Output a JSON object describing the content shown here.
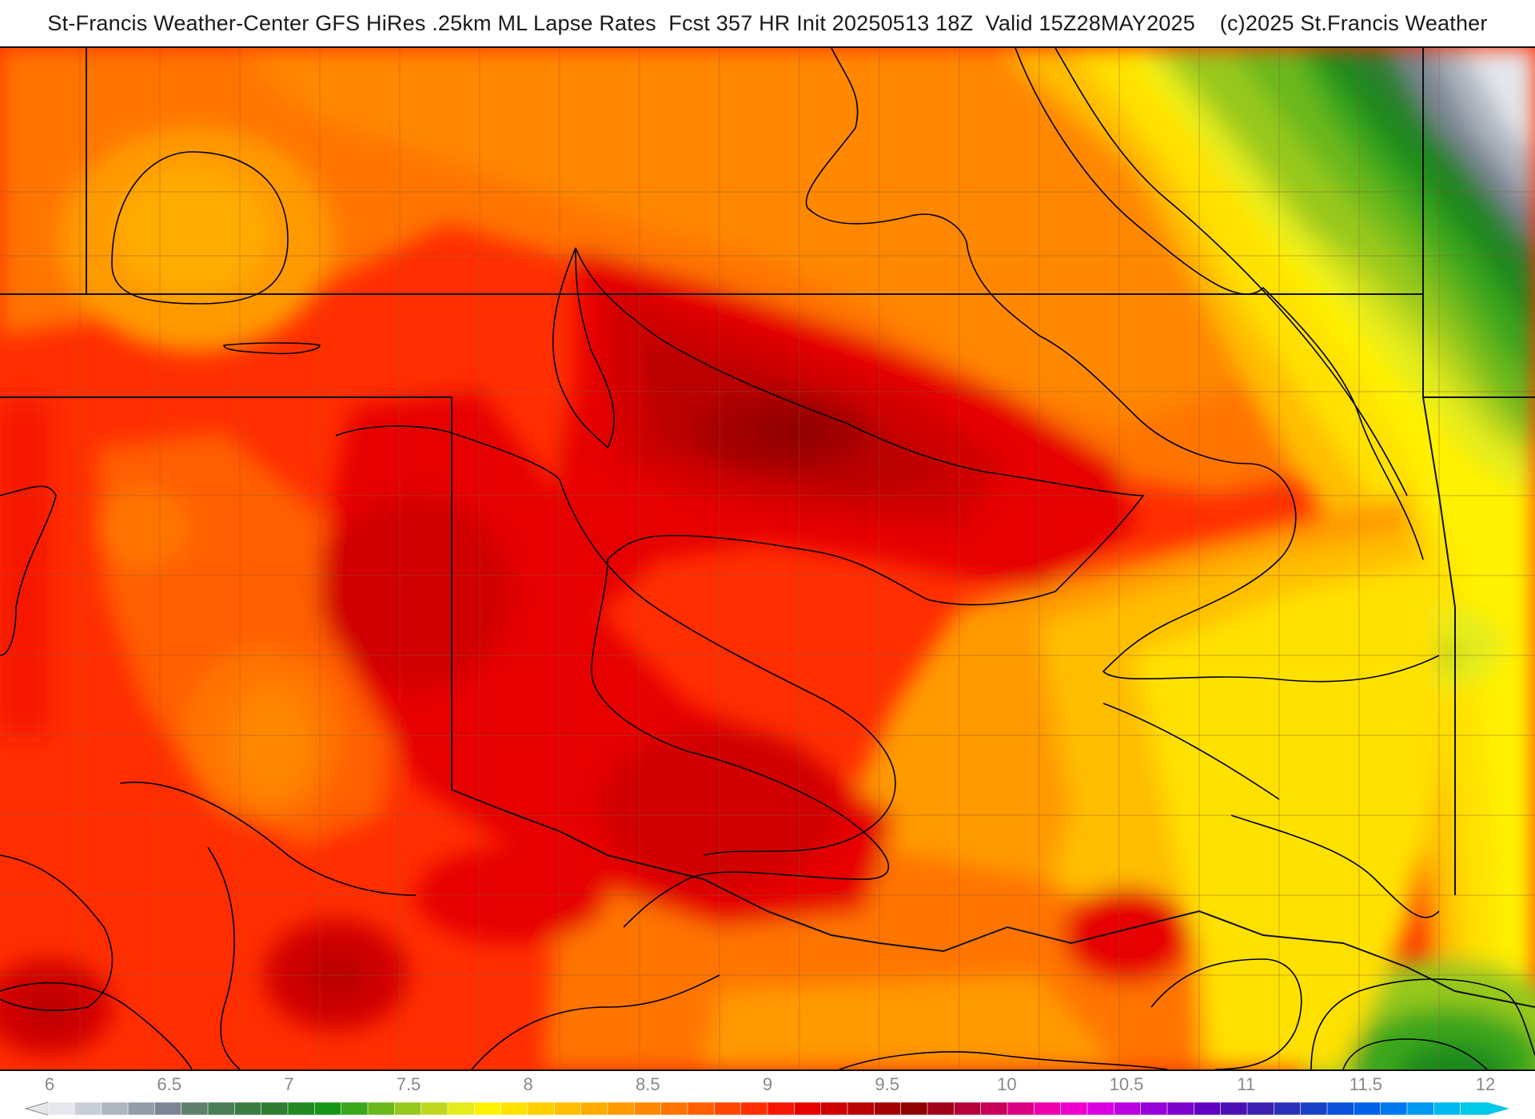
{
  "title": "St-Francis Weather-Center GFS HiRes .25km ML Lapse Rates  Fcst 357 HR Init 20250513 18Z  Valid 15Z28MAY2025    (c)2025 St.Francis Weather",
  "legend": {
    "ticks": [
      "6",
      "6.5",
      "7",
      "7.5",
      "8",
      "8.5",
      "9",
      "9.5",
      "10",
      "10.5",
      "11",
      "11.5",
      "12"
    ],
    "colors": [
      "#e4e7ec",
      "#c9ced6",
      "#aeb5bf",
      "#949ca8",
      "#7b8593",
      "#5f7f6d",
      "#4a7d57",
      "#3a7c43",
      "#2e7d32",
      "#1f8a1f",
      "#169616",
      "#3aa61a",
      "#6ab81c",
      "#96c81e",
      "#bfd81f",
      "#e4ec1c",
      "#fff200",
      "#ffe100",
      "#ffd000",
      "#ffbe00",
      "#ffac00",
      "#ff9a00",
      "#ff8800",
      "#ff7400",
      "#ff5e00",
      "#ff4600",
      "#ff2e00",
      "#f51500",
      "#e60000",
      "#d00000",
      "#ba0000",
      "#a40000",
      "#900000",
      "#a0001a",
      "#b40038",
      "#c8005a",
      "#dc0082",
      "#ee00aa",
      "#f000d0",
      "#d800e0",
      "#b800e0",
      "#9800d8",
      "#7c00cc",
      "#6000c0",
      "#4a10b4",
      "#3a20b0",
      "#2a30b8",
      "#1a40c8",
      "#0a50d8",
      "#0060e8",
      "#0078f0",
      "#0098f0",
      "#00b8f0",
      "#00c8e8"
    ],
    "min_value": 6,
    "max_value": 12
  }
}
